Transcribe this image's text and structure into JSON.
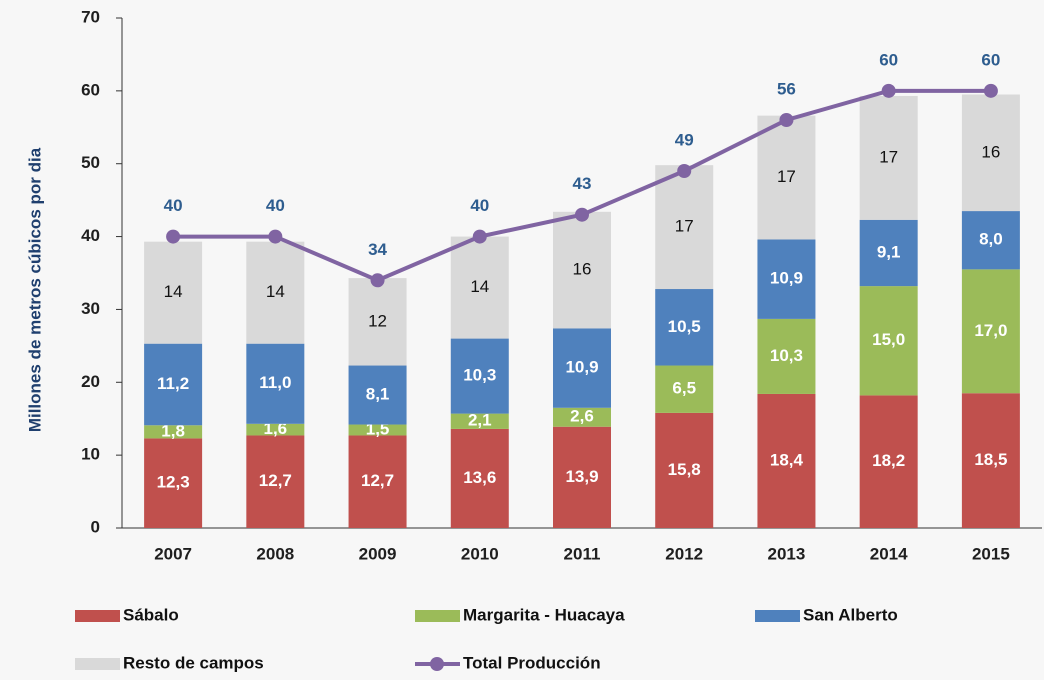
{
  "chart_data": {
    "type": "bar",
    "stacked": true,
    "y_label": "Millones de metros cúbicos por dia",
    "categories": [
      "2007",
      "2008",
      "2009",
      "2010",
      "2011",
      "2012",
      "2013",
      "2014",
      "2015"
    ],
    "ylim": [
      0,
      70
    ],
    "yticks": [
      0,
      10,
      20,
      30,
      40,
      50,
      60,
      70
    ],
    "series": [
      {
        "name": "Sábalo",
        "color": "#c0504d",
        "values": [
          12.3,
          12.7,
          12.7,
          13.6,
          13.9,
          15.8,
          18.4,
          18.2,
          18.5
        ],
        "value_labels": [
          "12,3",
          "12,7",
          "12,7",
          "13,6",
          "13,9",
          "15,8",
          "18,4",
          "18,2",
          "18,5"
        ]
      },
      {
        "name": "Margarita - Huacaya",
        "color": "#9bbb59",
        "values": [
          1.8,
          1.6,
          1.5,
          2.1,
          2.6,
          6.5,
          10.3,
          15.0,
          17.0
        ],
        "value_labels": [
          "1,8",
          "1,6",
          "1,5",
          "2,1",
          "2,6",
          "6,5",
          "10,3",
          "15,0",
          "17,0"
        ]
      },
      {
        "name": "San Alberto",
        "color": "#4f81bd",
        "values": [
          11.2,
          11.0,
          8.1,
          10.3,
          10.9,
          10.5,
          10.9,
          9.1,
          8.0
        ],
        "value_labels": [
          "11,2",
          "11,0",
          "8,1",
          "10,3",
          "10,9",
          "10,5",
          "10,9",
          "9,1",
          "8,0"
        ]
      },
      {
        "name": "Resto de campos",
        "color": "#d9d9d9",
        "values": [
          14,
          14,
          12,
          14,
          16,
          17,
          17,
          17,
          16
        ]
      },
      {
        "name": "Total Producción",
        "type": "line",
        "color": "#8064a2",
        "values": [
          40,
          40,
          34,
          40,
          43,
          49,
          56,
          60,
          60
        ]
      }
    ]
  }
}
